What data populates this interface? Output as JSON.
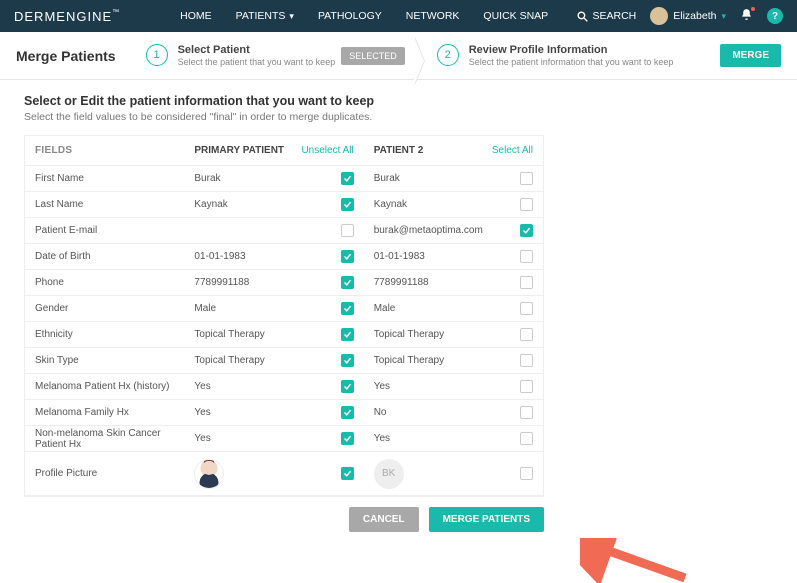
{
  "brand": {
    "a": "DERM",
    "b": "ENGINE",
    "tm": "™"
  },
  "nav": {
    "home": "HOME",
    "patients": "PATIENTS",
    "pathology": "PATHOLOGY",
    "network": "NETWORK",
    "quicksnap": "QUICK SNAP",
    "search": "SEARCH"
  },
  "user": {
    "name": "Elizabeth"
  },
  "subhead": {
    "title": "Merge Patients",
    "step1_n": "1",
    "step1_t": "Select Patient",
    "step1_s": "Select the patient that you want to keep",
    "selected": "SELECTED",
    "step2_n": "2",
    "step2_t": "Review Profile Information",
    "step2_s": "Select the patient information that you want to keep",
    "merge": "MERGE"
  },
  "section": {
    "title": "Select or Edit the patient information that you want to keep",
    "sub": "Select the field values to be considered \"final\" in order to merge duplicates."
  },
  "headers": {
    "fields": "FIELDS",
    "primary": "PRIMARY PATIENT",
    "unselect": "Unselect All",
    "p2": "PATIENT 2",
    "select": "Select All"
  },
  "rows": {
    "firstName": {
      "label": "First Name",
      "v1": "Burak",
      "c1": true,
      "v2": "Burak",
      "c2": false
    },
    "lastName": {
      "label": "Last Name",
      "v1": "Kaynak",
      "c1": true,
      "v2": "Kaynak",
      "c2": false
    },
    "email": {
      "label": "Patient E-mail",
      "v1": "",
      "c1": false,
      "v2": "burak@metaoptima.com",
      "c2": true
    },
    "dob": {
      "label": "Date of Birth",
      "v1": "01-01-1983",
      "c1": true,
      "v2": "01-01-1983",
      "c2": false
    },
    "phone": {
      "label": "Phone",
      "v1": "7789991188",
      "c1": true,
      "v2": "7789991188",
      "c2": false
    },
    "gender": {
      "label": "Gender",
      "v1": "Male",
      "c1": true,
      "v2": "Male",
      "c2": false
    },
    "ethnicity": {
      "label": "Ethnicity",
      "v1": "Topical Therapy",
      "c1": true,
      "v2": "Topical Therapy",
      "c2": false
    },
    "skin": {
      "label": "Skin Type",
      "v1": "Topical Therapy",
      "c1": true,
      "v2": "Topical Therapy",
      "c2": false
    },
    "melPatient": {
      "label": "Melanoma Patient Hx (history)",
      "v1": "Yes",
      "c1": true,
      "v2": "Yes",
      "c2": false
    },
    "melFamily": {
      "label": "Melanoma Family Hx",
      "v1": "Yes",
      "c1": true,
      "v2": "No",
      "c2": false
    },
    "nonMel": {
      "label": "Non-melanoma Skin Cancer Patient Hx",
      "v1": "Yes",
      "c1": true,
      "v2": "Yes",
      "c2": false
    },
    "pic": {
      "label": "Profile Picture",
      "initials": "BK",
      "c1": true,
      "c2": false
    }
  },
  "actions": {
    "cancel": "CANCEL",
    "merge": "MERGE PATIENTS"
  },
  "colors": {
    "accent": "#19b9ab",
    "arrow": "#f16a54"
  }
}
